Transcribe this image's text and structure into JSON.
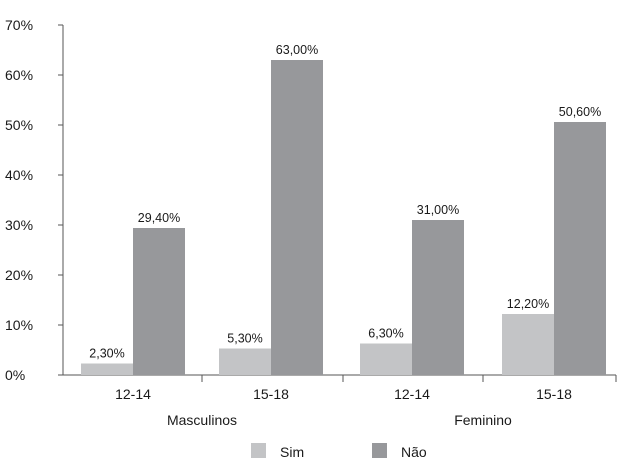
{
  "chart_data": {
    "type": "bar",
    "title": "",
    "xlabel": "",
    "ylabel": "",
    "ylim": [
      0,
      70
    ],
    "yticks": [
      0,
      10,
      20,
      30,
      40,
      50,
      60,
      70
    ],
    "ytick_suffix": "%",
    "categories": [
      "12-14",
      "15-18",
      "12-14",
      "15-18"
    ],
    "groups": [
      {
        "label": "Masculinos",
        "categories": [
          "12-14",
          "15-18"
        ]
      },
      {
        "label": "Feminino",
        "categories": [
          "12-14",
          "15-18"
        ]
      }
    ],
    "series": [
      {
        "name": "Sim",
        "color": "#c3c4c6",
        "values": [
          2.3,
          5.3,
          6.3,
          12.2
        ],
        "labels": [
          "2,30%",
          "5,30%",
          "6,30%",
          "12,20%"
        ]
      },
      {
        "name": "Não",
        "color": "#97989b",
        "values": [
          29.4,
          63.0,
          31.0,
          50.6
        ],
        "labels": [
          "29,40%",
          "63,00%",
          "31,00%",
          "50,60%"
        ]
      }
    ],
    "grid": false,
    "legend_position": "bottom"
  }
}
